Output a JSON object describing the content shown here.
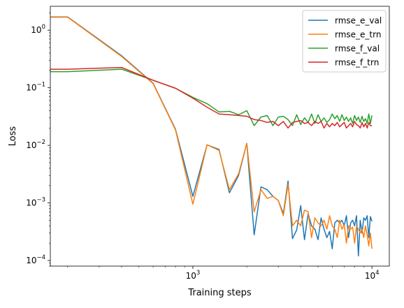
{
  "chart_data": {
    "type": "line",
    "xscale": "log",
    "yscale": "log",
    "xlabel": "Training steps",
    "ylabel": "Loss",
    "xlim": [
      160,
      12500
    ],
    "ylim": [
      8e-05,
      2.6
    ],
    "grid": false,
    "legend_position": "top-right",
    "x_ticks": [
      {
        "value": 1000,
        "base": "10",
        "exp": "3"
      },
      {
        "value": 10000,
        "base": "10",
        "exp": "4"
      }
    ],
    "y_ticks": [
      {
        "value": 0.0001,
        "base": "10",
        "exp": "−4"
      },
      {
        "value": 0.001,
        "base": "10",
        "exp": "−3"
      },
      {
        "value": 0.01,
        "base": "10",
        "exp": "−2"
      },
      {
        "value": 0.1,
        "base": "10",
        "exp": "−1"
      },
      {
        "value": 1,
        "base": "10",
        "exp": "0"
      }
    ],
    "series": [
      {
        "name": "rmse_e_val",
        "color": "#1f77b4",
        "points": [
          [
            150,
            1.7
          ],
          [
            200,
            1.7
          ],
          [
            400,
            0.36
          ],
          [
            600,
            0.12
          ],
          [
            800,
            0.019
          ],
          [
            1000,
            0.0013
          ],
          [
            1200,
            0.0102
          ],
          [
            1400,
            0.0085
          ],
          [
            1600,
            0.0015
          ],
          [
            1800,
            0.003
          ],
          [
            2000,
            0.0108
          ],
          [
            2200,
            0.00028
          ],
          [
            2400,
            0.0019
          ],
          [
            2600,
            0.0017
          ],
          [
            2800,
            0.0013
          ],
          [
            3000,
            0.0011
          ],
          [
            3200,
            0.00065
          ],
          [
            3400,
            0.0024
          ],
          [
            3600,
            0.00024
          ],
          [
            3800,
            0.00034
          ],
          [
            4000,
            0.0009
          ],
          [
            4200,
            0.00023
          ],
          [
            4400,
            0.00065
          ],
          [
            4600,
            0.0004
          ],
          [
            4800,
            0.00035
          ],
          [
            5000,
            0.00023
          ],
          [
            5200,
            0.00055
          ],
          [
            5400,
            0.00035
          ],
          [
            5600,
            0.00025
          ],
          [
            5800,
            0.00032
          ],
          [
            6000,
            0.00016
          ],
          [
            6200,
            0.00045
          ],
          [
            6400,
            0.0005
          ],
          [
            6600,
            0.00045
          ],
          [
            6800,
            0.0005
          ],
          [
            7000,
            0.0004
          ],
          [
            7200,
            0.0006
          ],
          [
            7400,
            0.00025
          ],
          [
            7600,
            0.00045
          ],
          [
            7800,
            0.0005
          ],
          [
            8000,
            0.0004
          ],
          [
            8200,
            0.0006
          ],
          [
            8400,
            0.00012
          ],
          [
            8600,
            0.0005
          ],
          [
            8800,
            0.0003
          ],
          [
            9000,
            0.00055
          ],
          [
            9200,
            0.0005
          ],
          [
            9400,
            0.0006
          ],
          [
            9600,
            0.00025
          ],
          [
            9800,
            0.00058
          ],
          [
            10000,
            0.00048
          ]
        ]
      },
      {
        "name": "rmse_e_trn",
        "color": "#ff7f0e",
        "points": [
          [
            150,
            1.68
          ],
          [
            200,
            1.68
          ],
          [
            400,
            0.35
          ],
          [
            600,
            0.118
          ],
          [
            800,
            0.0185
          ],
          [
            1000,
            0.00095
          ],
          [
            1200,
            0.0102
          ],
          [
            1400,
            0.0082
          ],
          [
            1600,
            0.0017
          ],
          [
            1800,
            0.0032
          ],
          [
            2000,
            0.0108
          ],
          [
            2200,
            0.0007
          ],
          [
            2400,
            0.0017
          ],
          [
            2600,
            0.0012
          ],
          [
            2800,
            0.0013
          ],
          [
            3000,
            0.0011
          ],
          [
            3200,
            0.0006
          ],
          [
            3400,
            0.0021
          ],
          [
            3600,
            0.0004
          ],
          [
            3800,
            0.0005
          ],
          [
            4000,
            0.0004
          ],
          [
            4200,
            0.00075
          ],
          [
            4400,
            0.0007
          ],
          [
            4600,
            0.00025
          ],
          [
            4800,
            0.00055
          ],
          [
            5000,
            0.00045
          ],
          [
            5200,
            0.0004
          ],
          [
            5400,
            0.0005
          ],
          [
            5600,
            0.00035
          ],
          [
            5800,
            0.0006
          ],
          [
            6000,
            0.0004
          ],
          [
            6200,
            0.00035
          ],
          [
            6400,
            0.00025
          ],
          [
            6600,
            0.0005
          ],
          [
            6800,
            0.00035
          ],
          [
            7000,
            0.00042
          ],
          [
            7200,
            0.0002
          ],
          [
            7400,
            0.0004
          ],
          [
            7600,
            0.00035
          ],
          [
            7800,
            0.00038
          ],
          [
            8000,
            0.0002
          ],
          [
            8200,
            0.0004
          ],
          [
            8400,
            0.00035
          ],
          [
            8600,
            0.0003
          ],
          [
            8800,
            0.00035
          ],
          [
            9000,
            0.00025
          ],
          [
            9200,
            0.0004
          ],
          [
            9400,
            0.00028
          ],
          [
            9600,
            0.00018
          ],
          [
            9800,
            0.0003
          ],
          [
            10000,
            0.00016
          ]
        ]
      },
      {
        "name": "rmse_f_val",
        "color": "#2ca02c",
        "points": [
          [
            150,
            0.19
          ],
          [
            200,
            0.19
          ],
          [
            400,
            0.21
          ],
          [
            600,
            0.135
          ],
          [
            800,
            0.098
          ],
          [
            1000,
            0.068
          ],
          [
            1200,
            0.053
          ],
          [
            1400,
            0.038
          ],
          [
            1600,
            0.039
          ],
          [
            1800,
            0.034
          ],
          [
            2000,
            0.04
          ],
          [
            2200,
            0.022
          ],
          [
            2400,
            0.031
          ],
          [
            2600,
            0.033
          ],
          [
            2800,
            0.022
          ],
          [
            3000,
            0.031
          ],
          [
            3200,
            0.032
          ],
          [
            3400,
            0.028
          ],
          [
            3600,
            0.022
          ],
          [
            3800,
            0.034
          ],
          [
            4000,
            0.023
          ],
          [
            4200,
            0.03
          ],
          [
            4400,
            0.025
          ],
          [
            4600,
            0.035
          ],
          [
            4800,
            0.024
          ],
          [
            5000,
            0.034
          ],
          [
            5200,
            0.026
          ],
          [
            5400,
            0.03
          ],
          [
            5600,
            0.025
          ],
          [
            5800,
            0.028
          ],
          [
            6000,
            0.035
          ],
          [
            6200,
            0.029
          ],
          [
            6400,
            0.033
          ],
          [
            6600,
            0.026
          ],
          [
            6800,
            0.034
          ],
          [
            7000,
            0.027
          ],
          [
            7200,
            0.031
          ],
          [
            7400,
            0.026
          ],
          [
            7600,
            0.03
          ],
          [
            7800,
            0.024
          ],
          [
            8000,
            0.033
          ],
          [
            8200,
            0.027
          ],
          [
            8400,
            0.031
          ],
          [
            8600,
            0.025
          ],
          [
            8800,
            0.032
          ],
          [
            9000,
            0.026
          ],
          [
            9200,
            0.029
          ],
          [
            9400,
            0.024
          ],
          [
            9600,
            0.035
          ],
          [
            9800,
            0.024
          ],
          [
            10000,
            0.033
          ]
        ]
      },
      {
        "name": "rmse_f_trn",
        "color": "#d62728",
        "points": [
          [
            150,
            0.21
          ],
          [
            200,
            0.21
          ],
          [
            400,
            0.225
          ],
          [
            600,
            0.135
          ],
          [
            800,
            0.098
          ],
          [
            1000,
            0.066
          ],
          [
            1200,
            0.046
          ],
          [
            1400,
            0.035
          ],
          [
            1600,
            0.034
          ],
          [
            1800,
            0.033
          ],
          [
            2000,
            0.032
          ],
          [
            2200,
            0.028
          ],
          [
            2400,
            0.027
          ],
          [
            2600,
            0.025
          ],
          [
            2800,
            0.026
          ],
          [
            3000,
            0.022
          ],
          [
            3200,
            0.026
          ],
          [
            3400,
            0.02
          ],
          [
            3600,
            0.025
          ],
          [
            3800,
            0.026
          ],
          [
            4000,
            0.027
          ],
          [
            4200,
            0.024
          ],
          [
            4400,
            0.025
          ],
          [
            4600,
            0.022
          ],
          [
            4800,
            0.026
          ],
          [
            5000,
            0.024
          ],
          [
            5200,
            0.026
          ],
          [
            5400,
            0.02
          ],
          [
            5600,
            0.024
          ],
          [
            5800,
            0.021
          ],
          [
            6000,
            0.024
          ],
          [
            6200,
            0.022
          ],
          [
            6400,
            0.025
          ],
          [
            6600,
            0.021
          ],
          [
            6800,
            0.023
          ],
          [
            7000,
            0.025
          ],
          [
            7200,
            0.02
          ],
          [
            7400,
            0.022
          ],
          [
            7600,
            0.024
          ],
          [
            7800,
            0.021
          ],
          [
            8000,
            0.026
          ],
          [
            8200,
            0.023
          ],
          [
            8400,
            0.022
          ],
          [
            8600,
            0.02
          ],
          [
            8800,
            0.025
          ],
          [
            9000,
            0.021
          ],
          [
            9200,
            0.024
          ],
          [
            9400,
            0.02
          ],
          [
            9600,
            0.025
          ],
          [
            9800,
            0.022
          ],
          [
            10000,
            0.022
          ]
        ]
      }
    ]
  }
}
